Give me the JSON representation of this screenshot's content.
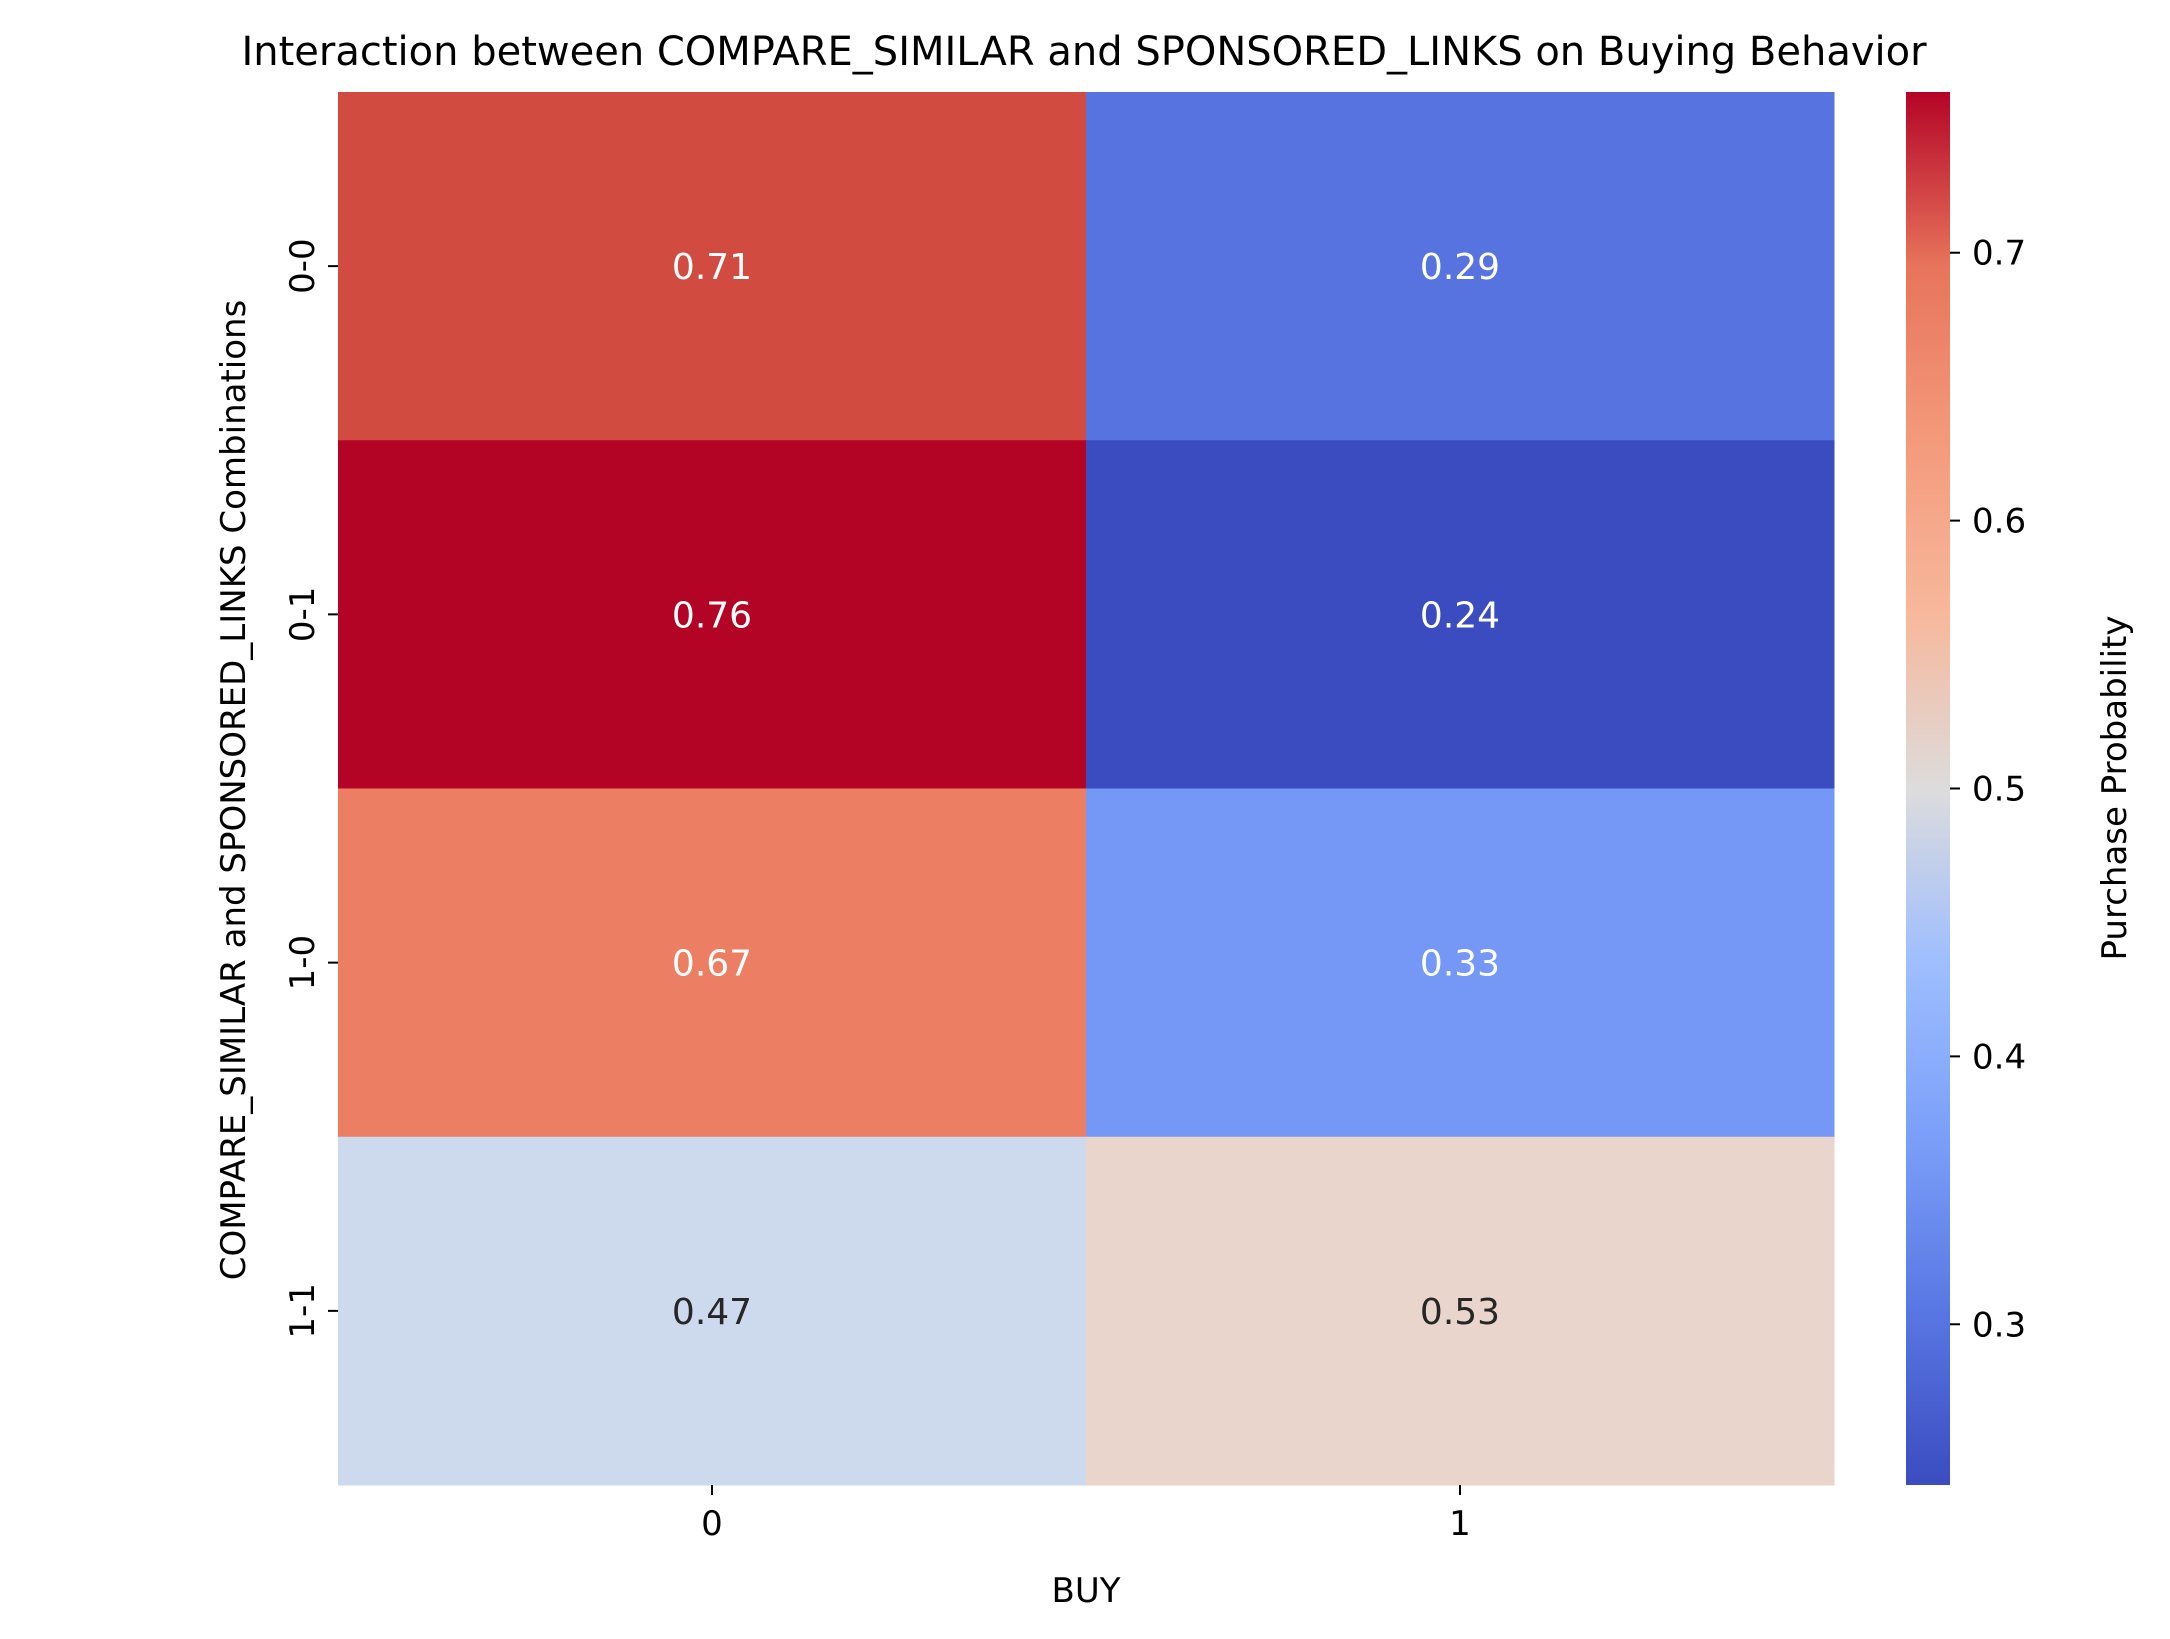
{
  "chart_data": {
    "type": "heatmap",
    "title": "Interaction between COMPARE_SIMILAR and SPONSORED_LINKS on Buying Behavior",
    "xlabel": "BUY",
    "ylabel": "COMPARE_SIMILAR and SPONSORED_LINKS Combinations",
    "x_categories": [
      "0",
      "1"
    ],
    "y_categories": [
      "0-0",
      "0-1",
      "1-0",
      "1-1"
    ],
    "values": [
      [
        0.71,
        0.29
      ],
      [
        0.76,
        0.24
      ],
      [
        0.67,
        0.33
      ],
      [
        0.47,
        0.53
      ]
    ],
    "annotations": [
      [
        "0.71",
        "0.29"
      ],
      [
        "0.76",
        "0.24"
      ],
      [
        "0.67",
        "0.33"
      ],
      [
        "0.47",
        "0.53"
      ]
    ],
    "colormap": "coolwarm",
    "colorbar": {
      "label": "Purchase Probability",
      "range": [
        0.24,
        0.76
      ],
      "ticks": [
        "0.3",
        "0.4",
        "0.5",
        "0.6",
        "0.7"
      ],
      "tick_values": [
        0.3,
        0.4,
        0.5,
        0.6,
        0.7
      ],
      "placement": "right"
    },
    "cell_colors": [
      [
        "#d24b40",
        "#5673e0"
      ],
      [
        "#b40426",
        "#3b4cc0"
      ],
      [
        "#ec7f63",
        "#7597f6"
      ],
      [
        "#cdd9ec",
        "#e9d5cb"
      ]
    ],
    "annotation_colors": [
      [
        "#ffffff",
        "#ffffff"
      ],
      [
        "#ffffff",
        "#ffffff"
      ],
      [
        "#ffffff",
        "#ffffff"
      ],
      [
        "#262626",
        "#262626"
      ]
    ]
  }
}
